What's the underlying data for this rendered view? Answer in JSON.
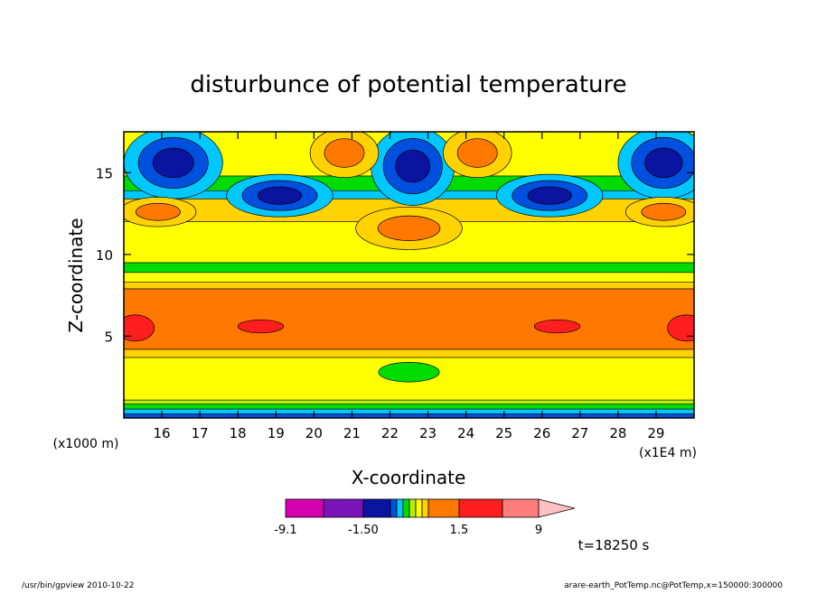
{
  "chart_data": {
    "type": "heatmap",
    "title": "disturbunce of potential temperature",
    "xlabel": "X-coordinate",
    "ylabel": "Z-coordinate",
    "x_unit": "(x1E4 m)",
    "y_unit": "(x1000 m)",
    "xlim": [
      15,
      30
    ],
    "ylim": [
      0,
      17.5
    ],
    "x_ticks": [
      16,
      17,
      18,
      19,
      20,
      21,
      22,
      23,
      24,
      25,
      26,
      27,
      28,
      29
    ],
    "y_ticks": [
      5,
      10,
      15
    ],
    "time_label": "t=18250 s",
    "colorbar": {
      "levels": [
        -9.1,
        -4.5,
        -1.5,
        -1.125,
        -0.75,
        -0.375,
        0,
        0.375,
        0.75,
        1.125,
        1.5,
        4.5,
        9
      ],
      "colors": [
        "#d400b0",
        "#7a14b8",
        "#0a14a0",
        "#0050e0",
        "#00c8ff",
        "#00dc00",
        "#b4f000",
        "#ffff00",
        "#ffd200",
        "#ff7800",
        "#ff1e1e",
        "#ff7c7c",
        "#ffc0c0"
      ],
      "labels": [
        {
          "value": -9.1,
          "text": "-9.1"
        },
        {
          "value": -1.5,
          "text": "-1.50"
        },
        {
          "value": 1.5,
          "text": "1.5"
        },
        {
          "value": 9,
          "text": "9"
        }
      ]
    },
    "bands": [
      {
        "z0": 0.0,
        "z1": 0.25,
        "color": "#0050e0"
      },
      {
        "z0": 0.25,
        "z1": 0.55,
        "color": "#00c8ff"
      },
      {
        "z0": 0.55,
        "z1": 0.85,
        "color": "#00dc00"
      },
      {
        "z0": 0.85,
        "z1": 1.1,
        "color": "#b4f000"
      },
      {
        "z0": 1.1,
        "z1": 3.7,
        "color": "#ffff00"
      },
      {
        "z0": 3.7,
        "z1": 4.2,
        "color": "#ffd200"
      },
      {
        "z0": 4.2,
        "z1": 7.9,
        "color": "#ff7800"
      },
      {
        "z0": 7.9,
        "z1": 8.3,
        "color": "#ffd200"
      },
      {
        "z0": 8.3,
        "z1": 8.9,
        "color": "#ffff00"
      },
      {
        "z0": 8.9,
        "z1": 9.5,
        "color": "#00dc00"
      },
      {
        "z0": 9.5,
        "z1": 12.0,
        "color": "#ffff00"
      },
      {
        "z0": 12.0,
        "z1": 13.4,
        "color": "#ffd200"
      },
      {
        "z0": 13.4,
        "z1": 13.9,
        "color": "#00c8ff"
      },
      {
        "z0": 13.9,
        "z1": 14.8,
        "color": "#00dc00"
      },
      {
        "z0": 14.8,
        "z1": 17.5,
        "color": "#ffff00"
      }
    ],
    "blobs": [
      {
        "x": 16.3,
        "z": 15.6,
        "rx": 1.3,
        "rz": 2.2,
        "colors": [
          "#00c8ff",
          "#0050e0",
          "#0a14a0"
        ]
      },
      {
        "x": 29.2,
        "z": 15.6,
        "rx": 1.2,
        "rz": 2.2,
        "colors": [
          "#00c8ff",
          "#0050e0",
          "#0a14a0"
        ]
      },
      {
        "x": 22.6,
        "z": 15.4,
        "rx": 1.1,
        "rz": 2.4,
        "colors": [
          "#00c8ff",
          "#0050e0",
          "#0a14a0"
        ]
      },
      {
        "x": 19.1,
        "z": 13.6,
        "rx": 1.4,
        "rz": 1.3,
        "colors": [
          "#00c8ff",
          "#0050e0",
          "#0a14a0"
        ]
      },
      {
        "x": 26.2,
        "z": 13.6,
        "rx": 1.4,
        "rz": 1.3,
        "colors": [
          "#00c8ff",
          "#0050e0",
          "#0a14a0"
        ]
      },
      {
        "x": 20.8,
        "z": 16.2,
        "rx": 0.9,
        "rz": 1.5,
        "colors": [
          "#ffd200",
          "#ff7800"
        ]
      },
      {
        "x": 24.3,
        "z": 16.2,
        "rx": 0.9,
        "rz": 1.5,
        "colors": [
          "#ffd200",
          "#ff7800"
        ]
      },
      {
        "x": 22.5,
        "z": 11.6,
        "rx": 1.4,
        "rz": 1.3,
        "colors": [
          "#ffd200",
          "#ff7800"
        ]
      },
      {
        "x": 15.9,
        "z": 12.6,
        "rx": 1.0,
        "rz": 0.9,
        "colors": [
          "#ffd200",
          "#ff7800"
        ]
      },
      {
        "x": 29.2,
        "z": 12.6,
        "rx": 1.0,
        "rz": 0.9,
        "colors": [
          "#ffd200",
          "#ff7800"
        ]
      },
      {
        "x": 15.3,
        "z": 5.5,
        "rx": 0.5,
        "rz": 0.8,
        "colors": [
          "#ff1e1e"
        ]
      },
      {
        "x": 29.8,
        "z": 5.5,
        "rx": 0.5,
        "rz": 0.8,
        "colors": [
          "#ff1e1e"
        ]
      },
      {
        "x": 18.6,
        "z": 5.6,
        "rx": 0.6,
        "rz": 0.4,
        "colors": [
          "#ff1e1e"
        ]
      },
      {
        "x": 26.4,
        "z": 5.6,
        "rx": 0.6,
        "rz": 0.4,
        "colors": [
          "#ff1e1e"
        ]
      },
      {
        "x": 22.5,
        "z": 2.8,
        "rx": 0.8,
        "rz": 0.6,
        "colors": [
          "#00dc00"
        ]
      }
    ]
  },
  "footer": {
    "left": "/usr/bin/gpview   2010-10-22",
    "right": "arare-earth_PotTemp.nc@PotTemp,x=150000:300000"
  }
}
